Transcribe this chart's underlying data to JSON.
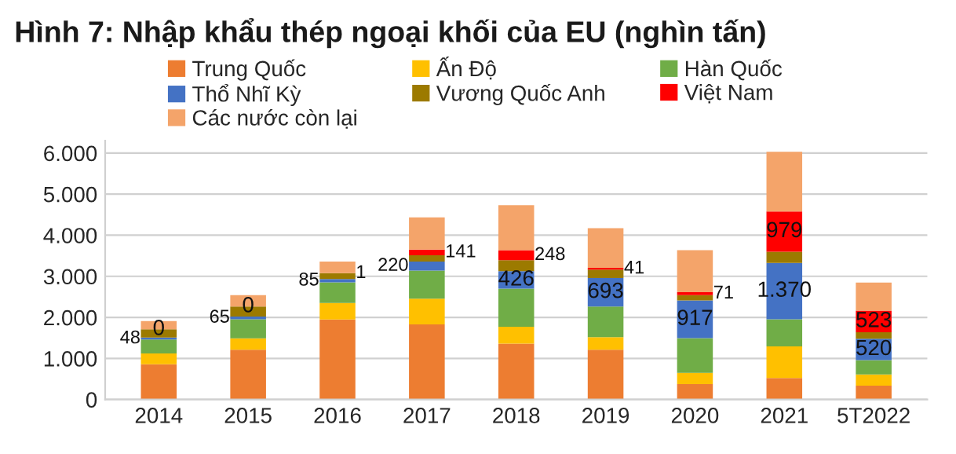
{
  "chart_data": {
    "type": "bar",
    "stacked": true,
    "title": "Hình 7: Nhập khẩu thép ngoại khối của EU (nghìn tấn)",
    "categories": [
      "2014",
      "2015",
      "2016",
      "2017",
      "2018",
      "2019",
      "2020",
      "2021",
      "5T2022"
    ],
    "series": [
      {
        "name": "Trung Quốc",
        "color": "#ed7d31",
        "values": [
          860,
          1210,
          1950,
          1830,
          1360,
          1210,
          375,
          525,
          335
        ]
      },
      {
        "name": "Ấn Độ",
        "color": "#ffc000",
        "values": [
          260,
          280,
          400,
          625,
          410,
          310,
          275,
          770,
          275
        ]
      },
      {
        "name": "Hàn Quốc",
        "color": "#70ad47",
        "values": [
          340,
          465,
          500,
          685,
          930,
          745,
          845,
          660,
          350
        ]
      },
      {
        "name": "Thổ Nhĩ Kỳ",
        "color": "#4472c4",
        "values": [
          48,
          65,
          85,
          220,
          426,
          693,
          917,
          1370,
          520
        ],
        "value_labels": [
          "48",
          "65",
          "85",
          "220",
          "426",
          "693",
          "917",
          "1.370",
          "520"
        ]
      },
      {
        "name": "Vương Quốc Anh",
        "color": "#9c7a00",
        "values": [
          200,
          245,
          140,
          150,
          264,
          207,
          128,
          275,
          160
        ]
      },
      {
        "name": "Việt Nam",
        "color": "#ff0000",
        "values": [
          0,
          0,
          1,
          141,
          248,
          41,
          71,
          979,
          523
        ],
        "value_labels": [
          "0",
          "0",
          "1",
          "141",
          "248",
          "41",
          "71",
          "979",
          "523"
        ]
      },
      {
        "name": "Các nước còn lại",
        "color": "#f4a46a",
        "values": [
          200,
          275,
          285,
          784,
          1092,
          964,
          1024,
          1451,
          685
        ]
      }
    ],
    "ylim": [
      0,
      6300
    ],
    "yticks": [
      {
        "value": 0,
        "label": "0"
      },
      {
        "value": 1000,
        "label": "1.000"
      },
      {
        "value": 2000,
        "label": "2.000"
      },
      {
        "value": 3000,
        "label": "3.000"
      },
      {
        "value": 4000,
        "label": "4.000"
      },
      {
        "value": 5000,
        "label": "5.000"
      },
      {
        "value": 6000,
        "label": "6.000"
      }
    ],
    "grid": "y",
    "legend": "top"
  }
}
